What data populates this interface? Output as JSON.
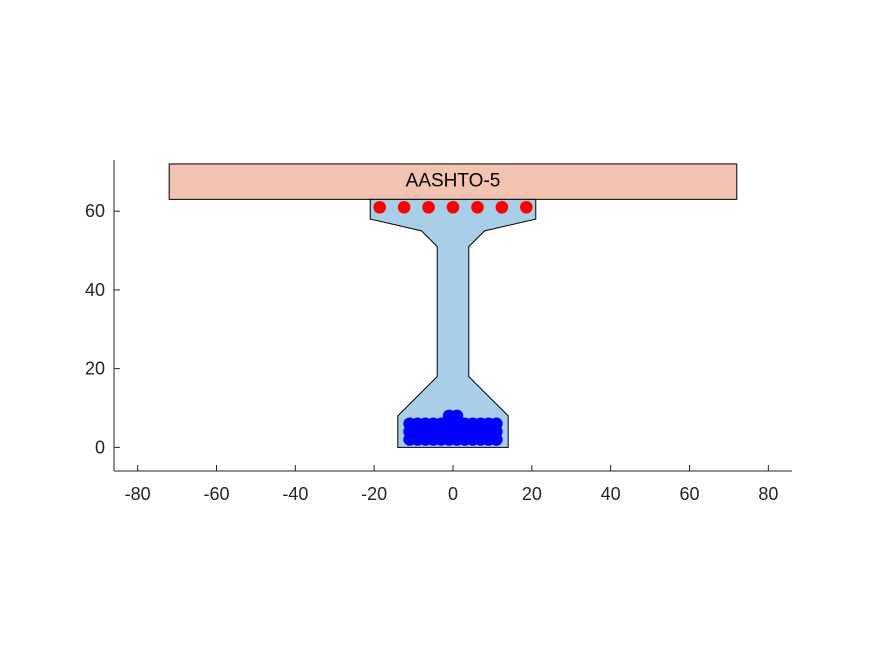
{
  "chart_data": {
    "type": "diagram",
    "title": "",
    "xlabel": "",
    "ylabel": "",
    "xlim": [
      -86,
      86
    ],
    "ylim": [
      -6,
      73
    ],
    "x_ticks": [
      -80,
      -60,
      -40,
      -20,
      0,
      20,
      40,
      60,
      80
    ],
    "x_tick_labels": [
      "-80",
      "-60",
      "-40",
      "-20",
      "0",
      "20",
      "40",
      "60",
      "80"
    ],
    "y_ticks": [
      0,
      20,
      40,
      60
    ],
    "y_tick_labels": [
      "0",
      "20",
      "40",
      "60"
    ],
    "grid": false,
    "deck": {
      "label": "AASHTO-5",
      "x_range": [
        -72,
        72
      ],
      "y_range": [
        63,
        72
      ],
      "color": "#f2c3b0"
    },
    "girder": {
      "color": "#a9cfe8",
      "outline": [
        [
          -14,
          0
        ],
        [
          14,
          0
        ],
        [
          14,
          8
        ],
        [
          4,
          18
        ],
        [
          4,
          51
        ],
        [
          8,
          55
        ],
        [
          21,
          58
        ],
        [
          21,
          63
        ],
        [
          -21,
          63
        ],
        [
          -21,
          58
        ],
        [
          -8,
          55
        ],
        [
          -4,
          51
        ],
        [
          -4,
          18
        ],
        [
          -14,
          8
        ]
      ]
    },
    "top_strands": {
      "color": "#ff0000",
      "y": 61,
      "x": [
        -18.6,
        -12.4,
        -6.2,
        0,
        6.2,
        12.4,
        18.6
      ]
    },
    "bottom_strands": {
      "color": "#0000ff",
      "points": [
        [
          -11,
          2
        ],
        [
          -9,
          2
        ],
        [
          -7,
          2
        ],
        [
          -5,
          2
        ],
        [
          -3,
          2
        ],
        [
          -1,
          2
        ],
        [
          1,
          2
        ],
        [
          3,
          2
        ],
        [
          5,
          2
        ],
        [
          7,
          2
        ],
        [
          9,
          2
        ],
        [
          11,
          2
        ],
        [
          -11,
          4
        ],
        [
          -9,
          4
        ],
        [
          -7,
          4
        ],
        [
          -5,
          4
        ],
        [
          -3,
          4
        ],
        [
          -1,
          4
        ],
        [
          1,
          4
        ],
        [
          3,
          4
        ],
        [
          5,
          4
        ],
        [
          7,
          4
        ],
        [
          9,
          4
        ],
        [
          11,
          4
        ],
        [
          -11,
          6
        ],
        [
          -9,
          6
        ],
        [
          -7,
          6
        ],
        [
          -5,
          6
        ],
        [
          -3,
          6
        ],
        [
          -1,
          6
        ],
        [
          1,
          6
        ],
        [
          3,
          6
        ],
        [
          5,
          6
        ],
        [
          7,
          6
        ],
        [
          9,
          6
        ],
        [
          11,
          6
        ],
        [
          -1,
          8
        ],
        [
          1,
          8
        ]
      ]
    }
  }
}
